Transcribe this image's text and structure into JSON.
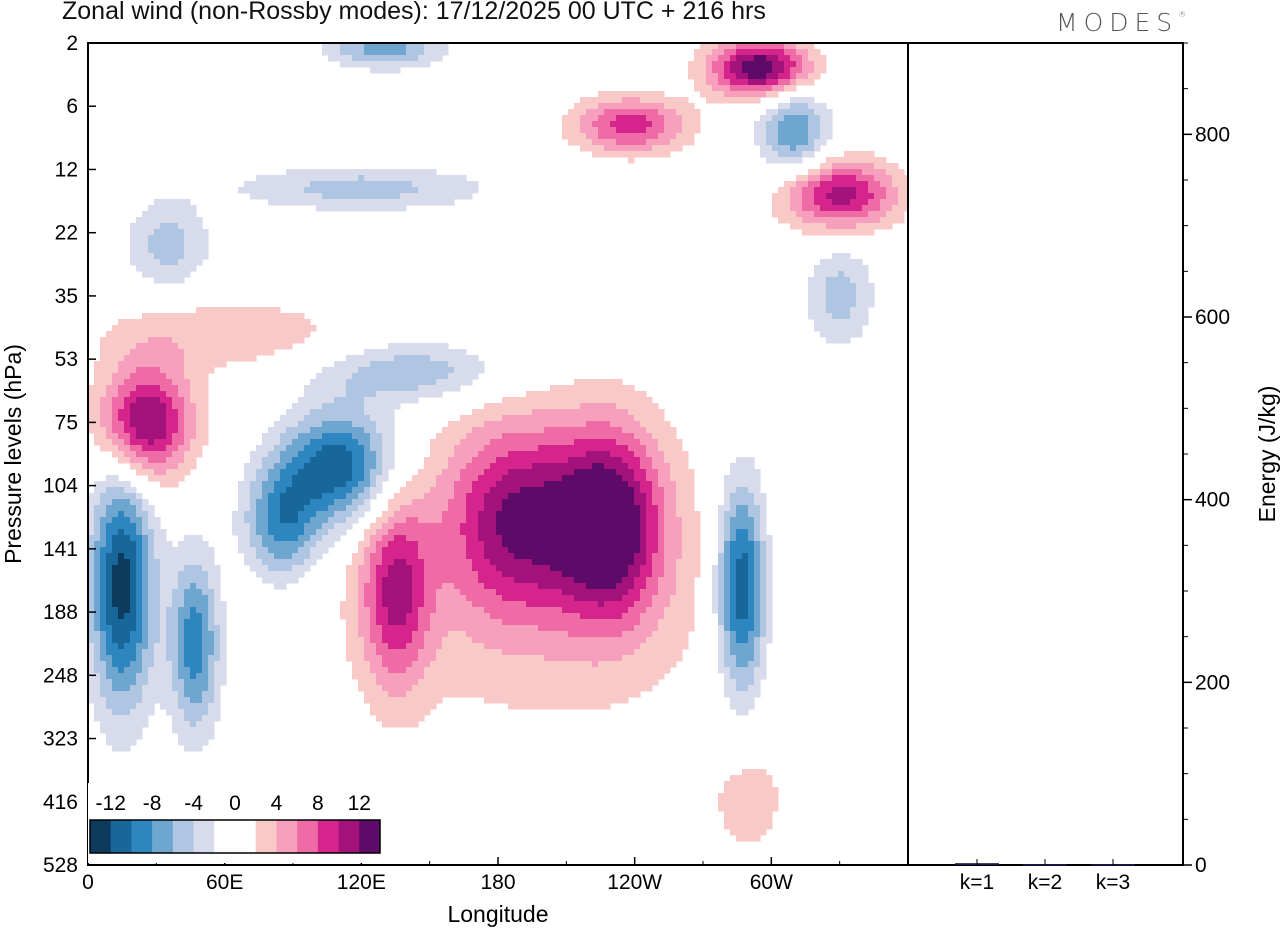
{
  "title": "Zonal wind (non-Rossby modes):  17/12/2025  00 UTC  + 216 hrs",
  "logo": "MODES",
  "logo_mark": "®",
  "chart_data": [
    {
      "type": "heatmap",
      "title": "Zonal wind (non-Rossby modes):  17/12/2025  00 UTC  + 216 hrs",
      "xlabel": "Longitude",
      "ylabel": "Pressure levels (hPa)",
      "x_ticks": [
        "0",
        "60E",
        "120E",
        "180",
        "120W",
        "60W"
      ],
      "x_tick_values": [
        0,
        60,
        120,
        180,
        240,
        300
      ],
      "xlim": [
        0,
        360
      ],
      "y_ticks": [
        "2",
        "6",
        "12",
        "22",
        "35",
        "53",
        "75",
        "104",
        "141",
        "188",
        "248",
        "323",
        "416",
        "528"
      ],
      "y_scale": "levels (top = 2 hPa, bottom = 528 hPa)",
      "colorbar": {
        "labels": [
          "-12",
          "-8",
          "-4",
          "0",
          "4",
          "8",
          "12"
        ],
        "colors": [
          "#0c3b5e",
          "#17679a",
          "#2e86c1",
          "#6ea6cf",
          "#aec6e1",
          "#d7dbeb",
          "#ffffff",
          "#ffffff",
          "#f9c9c8",
          "#f6a0bd",
          "#ef6ba6",
          "#d6248d",
          "#a3127a",
          "#5e0a68"
        ],
        "levels": [
          -14,
          -12,
          -10,
          -8,
          -6,
          -4,
          -2,
          0,
          2,
          4,
          6,
          8,
          10,
          12,
          14
        ],
        "position": "bottom-left"
      },
      "features": [
        {
          "lon": 15,
          "level": 8.6,
          "value": -13,
          "rx": 14,
          "ry": 1.9
        },
        {
          "lon": 47,
          "level": 9.5,
          "value": -9.5,
          "rx": 11,
          "ry": 1.4
        },
        {
          "lon": 110,
          "level": 6.7,
          "value": -12,
          "rx": 25,
          "ry": 0.9
        },
        {
          "lon": 85,
          "level": 7.6,
          "value": -9,
          "rx": 17,
          "ry": 0.9
        },
        {
          "lon": 142,
          "level": 5.2,
          "value": -6,
          "rx": 40,
          "ry": 0.5
        },
        {
          "lon": 287,
          "level": 8.6,
          "value": -12.5,
          "rx": 11,
          "ry": 1.7
        },
        {
          "lon": 120,
          "level": 2.3,
          "value": -5,
          "rx": 55,
          "ry": 0.35
        },
        {
          "lon": 130,
          "level": 0.1,
          "value": -7,
          "rx": 25,
          "ry": 0.3
        },
        {
          "lon": 35,
          "level": 3.2,
          "value": -5,
          "rx": 18,
          "ry": 0.7
        },
        {
          "lon": 310,
          "level": 1.4,
          "value": -8,
          "rx": 15,
          "ry": 0.7
        },
        {
          "lon": 330,
          "level": 4.0,
          "value": -5,
          "rx": 15,
          "ry": 0.8
        },
        {
          "lon": 25,
          "level": 6.0,
          "value": 13,
          "rx": 20,
          "ry": 0.9
        },
        {
          "lon": 135,
          "level": 8.7,
          "value": 9,
          "rx": 15,
          "ry": 1.5
        },
        {
          "lon": 190,
          "level": 7.5,
          "value": 10,
          "rx": 32,
          "ry": 1.5
        },
        {
          "lon": 230,
          "level": 7.6,
          "value": 12,
          "rx": 22,
          "ry": 1.5
        },
        {
          "lon": 200,
          "level": 8.5,
          "value": 3.5,
          "rx": 90,
          "ry": 2.5
        },
        {
          "lon": 295,
          "level": 0.4,
          "value": 14,
          "rx": 22,
          "ry": 0.45
        },
        {
          "lon": 238,
          "level": 1.3,
          "value": 9,
          "rx": 25,
          "ry": 0.45
        },
        {
          "lon": 330,
          "level": 2.4,
          "value": 11,
          "rx": 25,
          "ry": 0.55
        },
        {
          "lon": 290,
          "level": 12.0,
          "value": 3,
          "rx": 18,
          "ry": 1.0
        },
        {
          "lon": 60,
          "level": 4.6,
          "value": 3.5,
          "rx": 60,
          "ry": 0.6
        }
      ]
    },
    {
      "type": "bar",
      "categories": [
        "k=1",
        "k=2",
        "k=3"
      ],
      "values": [
        2,
        1,
        1
      ],
      "ylabel": "Energy (J/kg)",
      "ylim": [
        0,
        900
      ],
      "y_ticks": [
        0,
        200,
        400,
        600,
        800
      ]
    }
  ]
}
